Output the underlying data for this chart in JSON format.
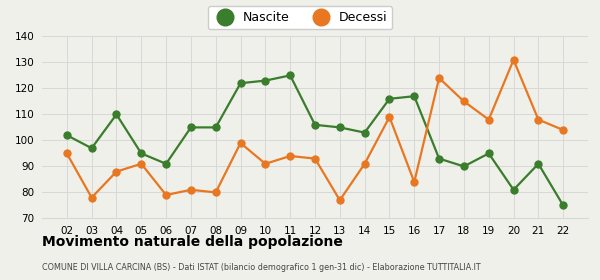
{
  "years": [
    "02",
    "03",
    "04",
    "05",
    "06",
    "07",
    "08",
    "09",
    "10",
    "11",
    "12",
    "13",
    "14",
    "15",
    "16",
    "17",
    "18",
    "19",
    "20",
    "21",
    "22"
  ],
  "nascite": [
    102,
    97,
    110,
    95,
    91,
    105,
    105,
    122,
    123,
    125,
    106,
    105,
    103,
    116,
    117,
    93,
    90,
    95,
    81,
    91,
    75
  ],
  "decessi": [
    95,
    78,
    88,
    91,
    79,
    81,
    80,
    99,
    91,
    94,
    93,
    77,
    91,
    109,
    84,
    124,
    115,
    108,
    131,
    108,
    104
  ],
  "nascite_color": "#3a7d2c",
  "decessi_color": "#e87722",
  "bg_color": "#f0f0eb",
  "grid_color": "#d8d8d8",
  "title": "Movimento naturale della popolazione",
  "subtitle": "COMUNE DI VILLA CARCINA (BS) - Dati ISTAT (bilancio demografico 1 gen-31 dic) - Elaborazione TUTTITALIA.IT",
  "ylim": [
    70,
    140
  ],
  "yticks": [
    70,
    80,
    90,
    100,
    110,
    120,
    130,
    140
  ],
  "legend_nascite": "Nascite",
  "legend_decessi": "Decessi",
  "marker_size": 5,
  "legend_marker_size": 12,
  "line_width": 1.6
}
